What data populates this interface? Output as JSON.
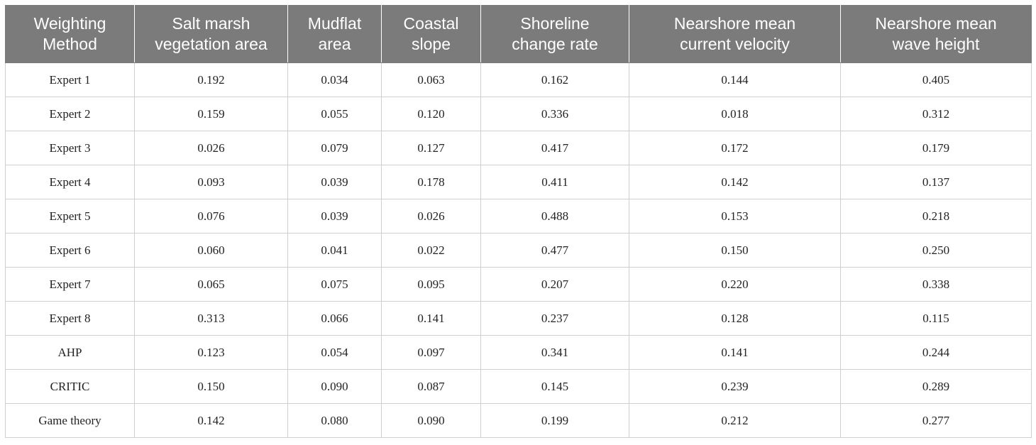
{
  "table": {
    "headers": [
      [
        "Weighting",
        "Method"
      ],
      [
        "Salt marsh",
        "vegetation area"
      ],
      [
        "Mudflat",
        "area"
      ],
      [
        "Coastal",
        "slope"
      ],
      [
        "Shoreline",
        "change rate"
      ],
      [
        "Nearshore mean",
        "current velocity"
      ],
      [
        "Nearshore mean",
        "wave height"
      ]
    ],
    "rows": [
      [
        "Expert 1",
        "0.192",
        "0.034",
        "0.063",
        "0.162",
        "0.144",
        "0.405"
      ],
      [
        "Expert 2",
        "0.159",
        "0.055",
        "0.120",
        "0.336",
        "0.018",
        "0.312"
      ],
      [
        "Expert 3",
        "0.026",
        "0.079",
        "0.127",
        "0.417",
        "0.172",
        "0.179"
      ],
      [
        "Expert 4",
        "0.093",
        "0.039",
        "0.178",
        "0.411",
        "0.142",
        "0.137"
      ],
      [
        "Expert 5",
        "0.076",
        "0.039",
        "0.026",
        "0.488",
        "0.153",
        "0.218"
      ],
      [
        "Expert 6",
        "0.060",
        "0.041",
        "0.022",
        "0.477",
        "0.150",
        "0.250"
      ],
      [
        "Expert 7",
        "0.065",
        "0.075",
        "0.095",
        "0.207",
        "0.220",
        "0.338"
      ],
      [
        "Expert 8",
        "0.313",
        "0.066",
        "0.141",
        "0.237",
        "0.128",
        "0.115"
      ],
      [
        "AHP",
        "0.123",
        "0.054",
        "0.097",
        "0.341",
        "0.141",
        "0.244"
      ],
      [
        "CRITIC",
        "0.150",
        "0.090",
        "0.087",
        "0.145",
        "0.239",
        "0.289"
      ],
      [
        "Game theory",
        "0.142",
        "0.080",
        "0.090",
        "0.199",
        "0.212",
        "0.277"
      ]
    ]
  }
}
